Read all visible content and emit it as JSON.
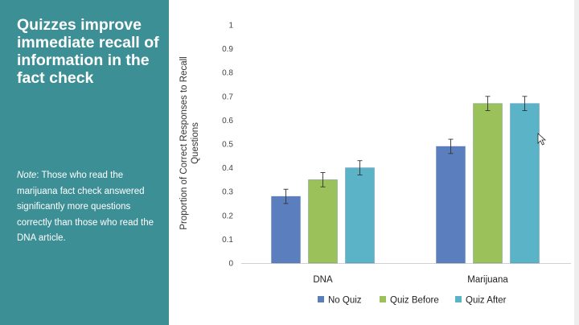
{
  "slide": {
    "title": "Quizzes improve immediate recall of information in the fact check",
    "note_label": "Note",
    "note_text": ": Those who read the marijuana fact check answered significantly more questions correctly than those who read the DNA article."
  },
  "colors": {
    "panel": "#3d8f96",
    "no_quiz": "#5b7fbe",
    "quiz_before": "#9bc25a",
    "quiz_after": "#5bb3c8"
  },
  "chart_data": {
    "type": "bar",
    "title": "",
    "xlabel": "",
    "ylabel": "Proportion of Correct Responses to Recall Questions",
    "ylabel_lines": [
      "Proportion of Correct Responses to Recall",
      "Questions"
    ],
    "ylim": [
      0,
      1
    ],
    "yticks": [
      "0",
      "0.1",
      "0.2",
      "0.3",
      "0.4",
      "0.5",
      "0.6",
      "0.7",
      "0.8",
      "0.9",
      "1"
    ],
    "categories": [
      "DNA",
      "Marijuana"
    ],
    "series": [
      {
        "name": "No Quiz",
        "values": [
          0.28,
          0.49
        ],
        "errors": [
          0.03,
          0.03
        ]
      },
      {
        "name": "Quiz Before",
        "values": [
          0.35,
          0.67
        ],
        "errors": [
          0.03,
          0.03
        ]
      },
      {
        "name": "Quiz After",
        "values": [
          0.4,
          0.67
        ],
        "errors": [
          0.03,
          0.03
        ]
      }
    ],
    "legend_position": "bottom",
    "grid": false
  }
}
